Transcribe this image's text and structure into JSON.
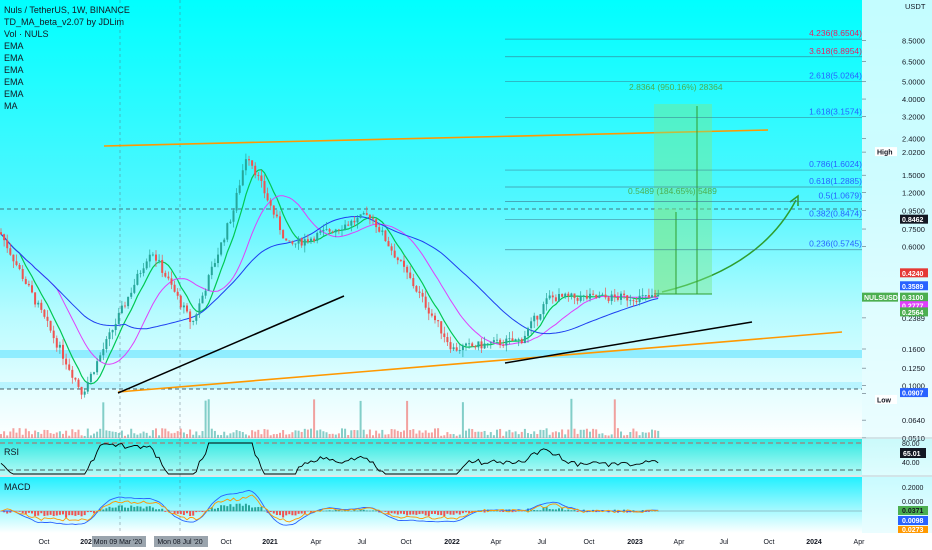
{
  "header": {
    "symbol_line": "Nuls / TetherUS, 1W, BINANCE",
    "indicators": [
      "TD_MA_beta_v2.07 by JDLim",
      "Vol · NULS",
      "EMA",
      "EMA",
      "EMA",
      "EMA",
      "EMA",
      "MA"
    ]
  },
  "colors": {
    "bg_top": "#00ffff",
    "bg_bottom": "#ffffff",
    "fib_text": "#2962ff",
    "fib_neg_text": "#e91e63",
    "measure_text": "#4caf50",
    "orange": "#ff9800",
    "blue_ma": "#1e3ff0",
    "pink_ma": "#e040fb",
    "green_ma": "#00c853"
  },
  "chart_data": {
    "type": "candlestick",
    "title": "Nuls / TetherUS, 1W, BINANCE",
    "y_scale": "log",
    "y_unit": "USDT",
    "price_axis_ticks": [
      "8.5000",
      "6.5000",
      "5.0000",
      "4.0000",
      "3.2000",
      "2.4000",
      "2.0200",
      "1.5000",
      "1.2000",
      "0.9500",
      "0.7500",
      "0.6000",
      "0.3100",
      "0.2389",
      "0.1600",
      "0.1250",
      "0.1000",
      "0.0900",
      "0.0640",
      "0.0510"
    ],
    "time_axis_labels": [
      "Oct",
      "2020",
      "Mon 09 Mar '20",
      "Mon 08 Jul '20",
      "Oct",
      "2021",
      "Apr",
      "Jul",
      "Oct",
      "2022",
      "Apr",
      "Jul",
      "Oct",
      "2023",
      "Apr",
      "Jul",
      "Oct",
      "2024",
      "Apr"
    ],
    "fib_levels": [
      {
        "label": "4.236(8.6504)",
        "ratio": 4.236,
        "price": 8.6504
      },
      {
        "label": "3.618(6.8954)",
        "ratio": 3.618,
        "price": 6.8954
      },
      {
        "label": "2.618(5.0264)",
        "ratio": 2.618,
        "price": 5.0264
      },
      {
        "label": "1.618(3.1574)",
        "ratio": 1.618,
        "price": 3.1574
      },
      {
        "label": "0.786(1.6024)",
        "ratio": 0.786,
        "price": 1.6024
      },
      {
        "label": "0.618(1.2885)",
        "ratio": 0.618,
        "price": 1.2885
      },
      {
        "label": "0.5(1.0679)",
        "ratio": 0.5,
        "price": 1.0679
      },
      {
        "label": "0.382(0.8474)",
        "ratio": 0.382,
        "price": 0.8474
      },
      {
        "label": "0.236(0.5745)",
        "ratio": 0.236,
        "price": 0.5745
      }
    ],
    "price_badges": [
      {
        "text": "High",
        "price": 2.02
      },
      {
        "text": "0.8462",
        "price": 0.8462
      },
      {
        "text": "0.4240",
        "price": 0.424
      },
      {
        "text": "0.3589",
        "price": 0.3589
      },
      {
        "text": "NULSUSDT",
        "price": 0.31
      },
      {
        "text": "0.3100",
        "price": 0.31
      },
      {
        "text": "3d 1h",
        "price": 0.31
      },
      {
        "text": "0.2777",
        "price": 0.2777
      },
      {
        "text": "0.2564",
        "price": 0.2564
      },
      {
        "text": "0.0907",
        "price": 0.0907
      },
      {
        "text": "Low",
        "price": 0.09
      }
    ],
    "measure_big": "2.8364 (950.16%) 28364",
    "measure_small": "0.5489 (184.65%) 5489",
    "series": [
      {
        "name": "Price (weekly)",
        "summary_points": [
          {
            "t": "2019-09",
            "close": 0.72
          },
          {
            "t": "2020-03",
            "close": 0.0907
          },
          {
            "t": "2020-08",
            "close": 0.58
          },
          {
            "t": "2020-11",
            "close": 0.22
          },
          {
            "t": "2021-02",
            "close": 0.95
          },
          {
            "t": "2021-03",
            "close": 2.02
          },
          {
            "t": "2021-06",
            "close": 0.6
          },
          {
            "t": "2021-12",
            "close": 0.9
          },
          {
            "t": "2022-06",
            "close": 0.16
          },
          {
            "t": "2022-11",
            "close": 0.18
          },
          {
            "t": "2023-01",
            "close": 0.31
          }
        ]
      }
    ],
    "rsi": {
      "label": "RSI",
      "value": "65.01",
      "levels": [
        "80.00",
        "40.00"
      ]
    },
    "macd": {
      "label": "MACD",
      "values": [
        "0.0371",
        "0.0098",
        "0.0273"
      ],
      "ticks": [
        "0.2000",
        "0.0000"
      ]
    }
  }
}
